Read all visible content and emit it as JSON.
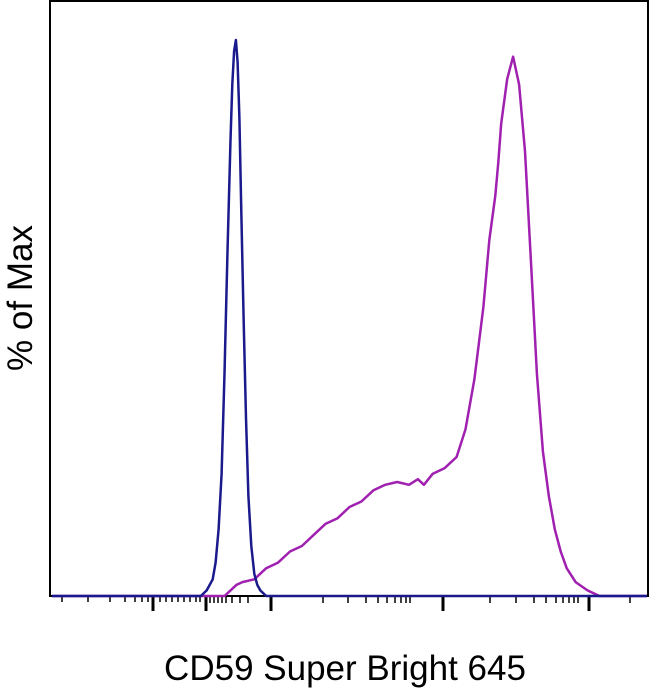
{
  "chart_data": {
    "type": "line",
    "title": "",
    "xlabel": "CD59 Super Bright 645",
    "ylabel": "% of Max",
    "x_scale": "biexponential",
    "xlim": [
      0,
      1
    ],
    "ylim": [
      0,
      100
    ],
    "grid": false,
    "legend": "none",
    "tick_labels_shown": false,
    "series": [
      {
        "color": "#1a1a8c",
        "x": [
          0.0,
          0.25,
          0.26,
          0.27,
          0.275,
          0.28,
          0.285,
          0.29,
          0.295,
          0.3,
          0.303,
          0.306,
          0.309,
          0.312,
          0.315,
          0.318,
          0.322,
          0.326,
          0.33,
          0.335,
          0.34,
          0.345,
          0.35,
          0.36,
          1.0
        ],
        "values": [
          0,
          0,
          1,
          3,
          6,
          12,
          22,
          40,
          62,
          82,
          92,
          98,
          100,
          96,
          86,
          70,
          50,
          32,
          18,
          9,
          4,
          2,
          1,
          0,
          0
        ]
      },
      {
        "color": "#a020b0",
        "x": [
          0.0,
          0.29,
          0.3,
          0.31,
          0.32,
          0.34,
          0.36,
          0.38,
          0.4,
          0.42,
          0.44,
          0.46,
          0.48,
          0.5,
          0.52,
          0.54,
          0.56,
          0.58,
          0.6,
          0.615,
          0.625,
          0.64,
          0.66,
          0.68,
          0.695,
          0.71,
          0.725,
          0.735,
          0.745,
          0.75,
          0.755,
          0.765,
          0.775,
          0.785,
          0.795,
          0.805,
          0.815,
          0.825,
          0.835,
          0.845,
          0.855,
          0.865,
          0.88,
          0.9,
          0.92,
          1.0
        ],
        "values": [
          0,
          0,
          1,
          2,
          2.5,
          3,
          5,
          6,
          8,
          9,
          11,
          13,
          14,
          16,
          17,
          19,
          20,
          20.5,
          20,
          21,
          20,
          22,
          23,
          25,
          30,
          39,
          52,
          64,
          72,
          78,
          85,
          93,
          97,
          92,
          80,
          60,
          40,
          26,
          18,
          12,
          8,
          5,
          2.5,
          1,
          0,
          0
        ]
      }
    ]
  }
}
